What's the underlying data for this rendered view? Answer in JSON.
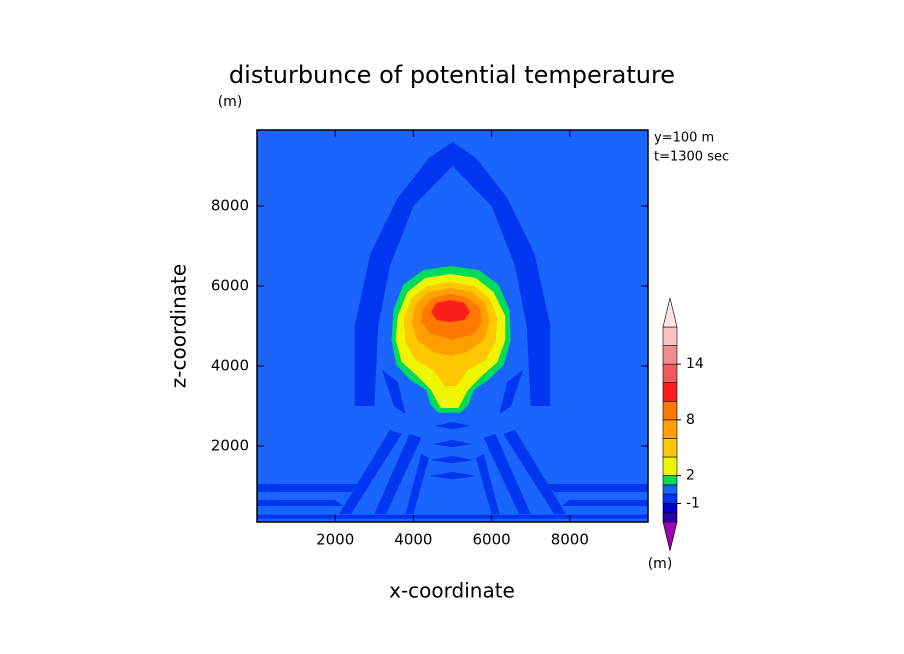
{
  "chart_data": {
    "type": "contour",
    "title": "disturbunce of potential temperature",
    "y_unit": "(m)",
    "annotations": [
      "y=100 m",
      "t=1300 sec"
    ],
    "xlabel": "x-coordinate",
    "ylabel": "z-coordinate",
    "xlim": [
      0,
      10000
    ],
    "ylim": [
      100,
      9900
    ],
    "xticks": [
      2000,
      4000,
      6000,
      8000
    ],
    "yticks": [
      2000,
      4000,
      6000,
      8000
    ],
    "background_level": 0,
    "colorbar": {
      "levels": [
        -3,
        -2,
        -1,
        0,
        1,
        2,
        4,
        6,
        8,
        10,
        12,
        14,
        16,
        18
      ],
      "colors": [
        "#2a00a8",
        "#0000c8",
        "#0036f0",
        "#1a64ff",
        "#00dc5a",
        "#eef500",
        "#ffc800",
        "#ffa000",
        "#ff7800",
        "#ff1e1e",
        "#f05a5a",
        "#f08c8c",
        "#fcc0c0"
      ],
      "under_color": "#a000b4",
      "over_color": "#ffe4e4",
      "ticks": [
        -1,
        2,
        8,
        14
      ],
      "unit": "(m)"
    },
    "regions": [
      {
        "level": -1,
        "x": [
          2500,
          2500,
          2900,
          3600,
          4400,
          5000,
          5600,
          6400,
          7100,
          7500,
          7500,
          7000,
          6900,
          6600,
          6000,
          5000,
          4000,
          3400,
          3100,
          3000
        ],
        "z": [
          3000,
          5000,
          6800,
          8200,
          9200,
          9600,
          9200,
          8200,
          6800,
          5000,
          3000,
          3000,
          5000,
          6500,
          8000,
          9000,
          8000,
          6500,
          5000,
          3000
        ]
      },
      {
        "level": -1,
        "x": [
          0,
          2600,
          2400,
          0
        ],
        "z": [
          1050,
          1050,
          850,
          850
        ]
      },
      {
        "level": -1,
        "x": [
          10000,
          7400,
          7600,
          10000
        ],
        "z": [
          1050,
          1050,
          850,
          850
        ]
      },
      {
        "level": -1,
        "x": [
          0,
          2000,
          2200,
          0
        ],
        "z": [
          650,
          650,
          500,
          500
        ]
      },
      {
        "level": -1,
        "x": [
          10000,
          8000,
          7800,
          10000
        ],
        "z": [
          650,
          650,
          500,
          500
        ]
      },
      {
        "level": -1,
        "x": [
          0,
          10000,
          10000,
          0
        ],
        "z": [
          280,
          280,
          180,
          180
        ]
      },
      {
        "level": -1,
        "x": [
          3400,
          3700,
          2400,
          2100
        ],
        "z": [
          2400,
          2300,
          300,
          300
        ]
      },
      {
        "level": -1,
        "x": [
          3900,
          4200,
          3300,
          3000
        ],
        "z": [
          2300,
          2200,
          300,
          300
        ]
      },
      {
        "level": -1,
        "x": [
          4200,
          4400,
          4000,
          3800
        ],
        "z": [
          1800,
          1700,
          300,
          300
        ]
      },
      {
        "level": -1,
        "x": [
          6600,
          6300,
          7600,
          7900
        ],
        "z": [
          2400,
          2300,
          300,
          300
        ]
      },
      {
        "level": -1,
        "x": [
          6100,
          5800,
          6700,
          7000
        ],
        "z": [
          2300,
          2200,
          300,
          300
        ]
      },
      {
        "level": -1,
        "x": [
          5800,
          5600,
          6000,
          6200
        ],
        "z": [
          1800,
          1700,
          300,
          300
        ]
      },
      {
        "level": -1,
        "x": [
          3200,
          3600,
          3800,
          3500
        ],
        "z": [
          3900,
          3600,
          2800,
          3000
        ]
      },
      {
        "level": -1,
        "x": [
          6800,
          6400,
          6200,
          6500
        ],
        "z": [
          3900,
          3600,
          2800,
          3000
        ]
      },
      {
        "level": -1,
        "x": [
          4550,
          5000,
          5450,
          5000
        ],
        "z": [
          2500,
          2600,
          2500,
          2420
        ]
      },
      {
        "level": -1,
        "x": [
          4500,
          5000,
          5500,
          5000
        ],
        "z": [
          2050,
          2150,
          2050,
          1970
        ]
      },
      {
        "level": -1,
        "x": [
          4450,
          5000,
          5550,
          5000
        ],
        "z": [
          1650,
          1750,
          1650,
          1570
        ]
      },
      {
        "level": -1,
        "x": [
          4400,
          5000,
          5600,
          5000
        ],
        "z": [
          1250,
          1350,
          1250,
          1170
        ]
      },
      {
        "level": 1,
        "x": [
          4950,
          5670,
          6180,
          6460,
          6490,
          6310,
          5920,
          5540,
          5410,
          5200,
          4640,
          4440,
          4330,
          3920,
          3560,
          3440,
          3490,
          3740,
          4260
        ],
        "z": [
          6500,
          6400,
          6030,
          5400,
          4650,
          4030,
          3650,
          3400,
          3030,
          2830,
          2830,
          3030,
          3400,
          3650,
          4030,
          4650,
          5400,
          6030,
          6400
        ]
      },
      {
        "level": 2,
        "x": [
          4950,
          5600,
          6050,
          6350,
          6350,
          6150,
          5750,
          5400,
          5150,
          4700,
          4450,
          4100,
          3700,
          3550,
          3600,
          3850,
          4300
        ],
        "z": [
          6300,
          6200,
          5850,
          5250,
          4650,
          4100,
          3750,
          3400,
          2950,
          2950,
          3400,
          3750,
          4100,
          4650,
          5250,
          5850,
          6200
        ]
      },
      {
        "level": 4,
        "x": [
          4950,
          5550,
          5950,
          6150,
          6100,
          5850,
          5400,
          5100,
          4800,
          4500,
          4050,
          3800,
          3750,
          3950,
          4350
        ],
        "z": [
          6100,
          6000,
          5700,
          5200,
          4600,
          4150,
          3900,
          3500,
          3500,
          3900,
          4150,
          4600,
          5200,
          5700,
          6000
        ]
      },
      {
        "level": 6,
        "x": [
          4950,
          5500,
          5850,
          5950,
          5800,
          5400,
          4950,
          4500,
          4100,
          3950,
          4050,
          4400
        ],
        "z": [
          5950,
          5850,
          5550,
          5100,
          4650,
          4350,
          4250,
          4350,
          4650,
          5100,
          5550,
          5850
        ]
      },
      {
        "level": 8,
        "x": [
          4950,
          5400,
          5700,
          5750,
          5550,
          5000,
          4450,
          4200,
          4250,
          4500
        ],
        "z": [
          5800,
          5700,
          5450,
          5100,
          4800,
          4650,
          4800,
          5100,
          5450,
          5700
        ]
      },
      {
        "level": 10,
        "x": [
          4950,
          5300,
          5450,
          5300,
          4950,
          4600,
          4450,
          4600
        ],
        "z": [
          5650,
          5580,
          5350,
          5150,
          5100,
          5150,
          5350,
          5580
        ]
      }
    ]
  }
}
